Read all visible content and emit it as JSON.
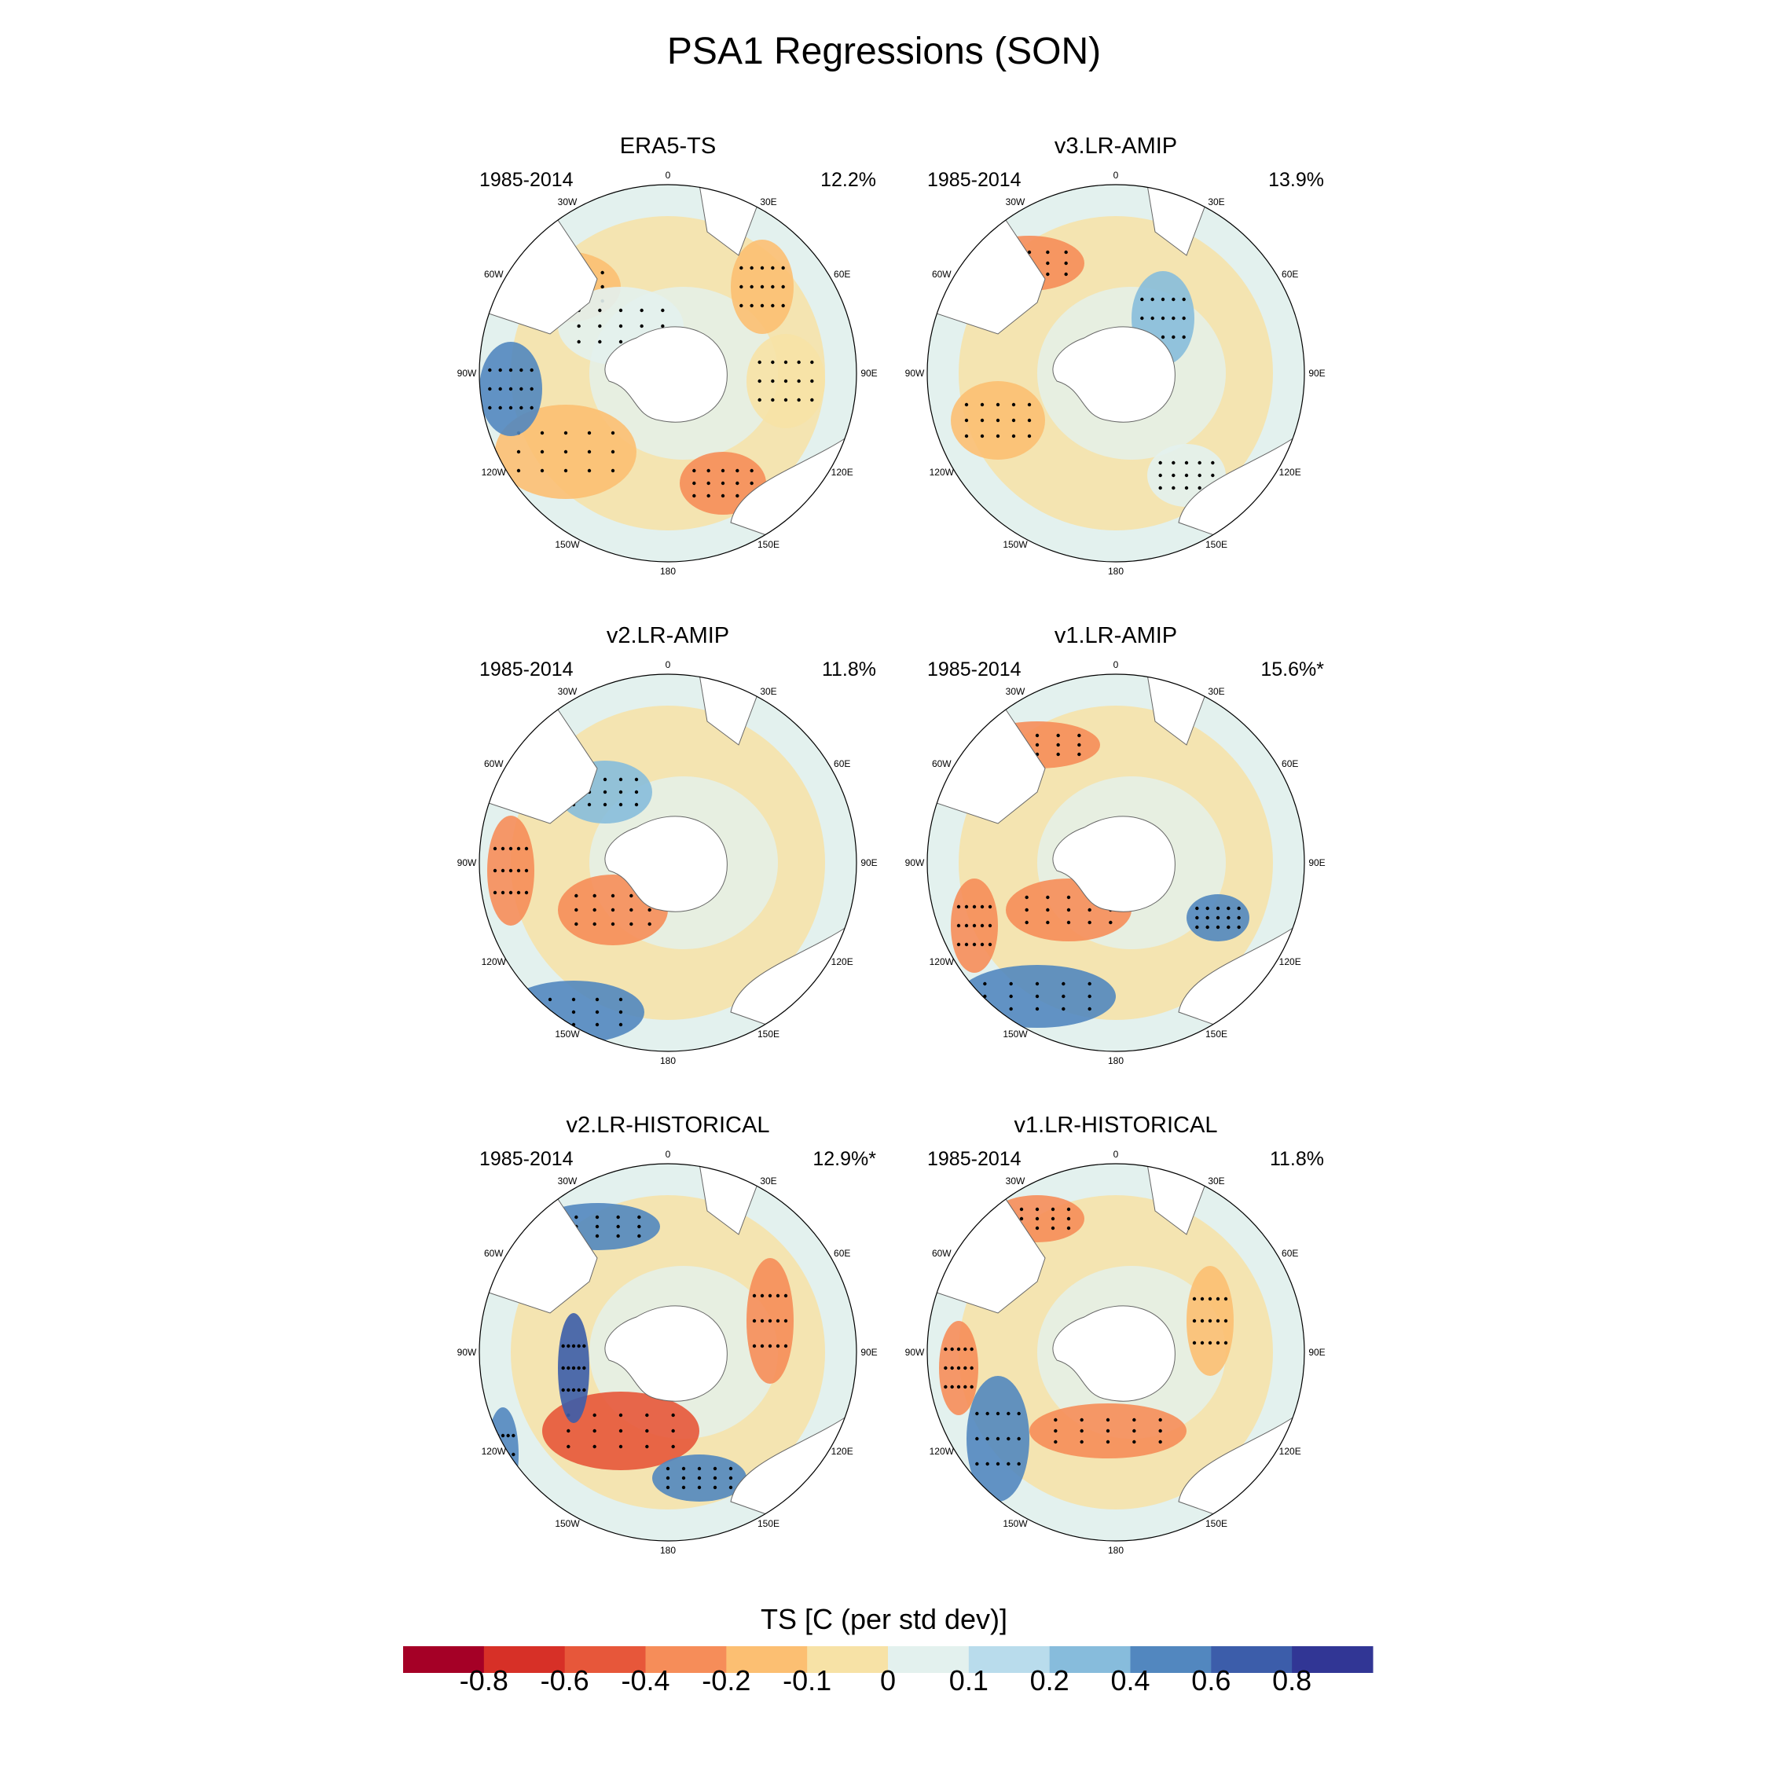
{
  "title": "PSA1 Regressions (SON)",
  "lon_labels": [
    "0",
    "30E",
    "60E",
    "90E",
    "120E",
    "150E",
    "180",
    "150W",
    "120W",
    "90W",
    "60W",
    "30W"
  ],
  "panels": [
    {
      "title": "ERA5-TS",
      "years": "1985-2014",
      "variance": "12.2%"
    },
    {
      "title": "v3.LR-AMIP",
      "years": "1985-2014",
      "variance": "13.9%"
    },
    {
      "title": "v2.LR-AMIP",
      "years": "1985-2014",
      "variance": "11.8%"
    },
    {
      "title": "v1.LR-AMIP",
      "years": "1985-2014",
      "variance": "15.6%*"
    },
    {
      "title": "v2.LR-HISTORICAL",
      "years": "1985-2014",
      "variance": "12.9%*"
    },
    {
      "title": "v1.LR-HISTORICAL",
      "years": "1985-2014",
      "variance": "11.8%"
    }
  ],
  "colorbar": {
    "title": "TS [C (per std dev)]",
    "labels": [
      "-0.8",
      "-0.6",
      "-0.4",
      "-0.2",
      "-0.1",
      "0",
      "0.1",
      "0.2",
      "0.4",
      "0.6",
      "0.8"
    ],
    "colors": [
      "#a50026",
      "#d73027",
      "#e7573a",
      "#f68d59",
      "#fcbf72",
      "#f7e2a6",
      "#e3f1ee",
      "#b9dcec",
      "#87bcdc",
      "#5287bf",
      "#3c5daa",
      "#313695"
    ]
  }
}
